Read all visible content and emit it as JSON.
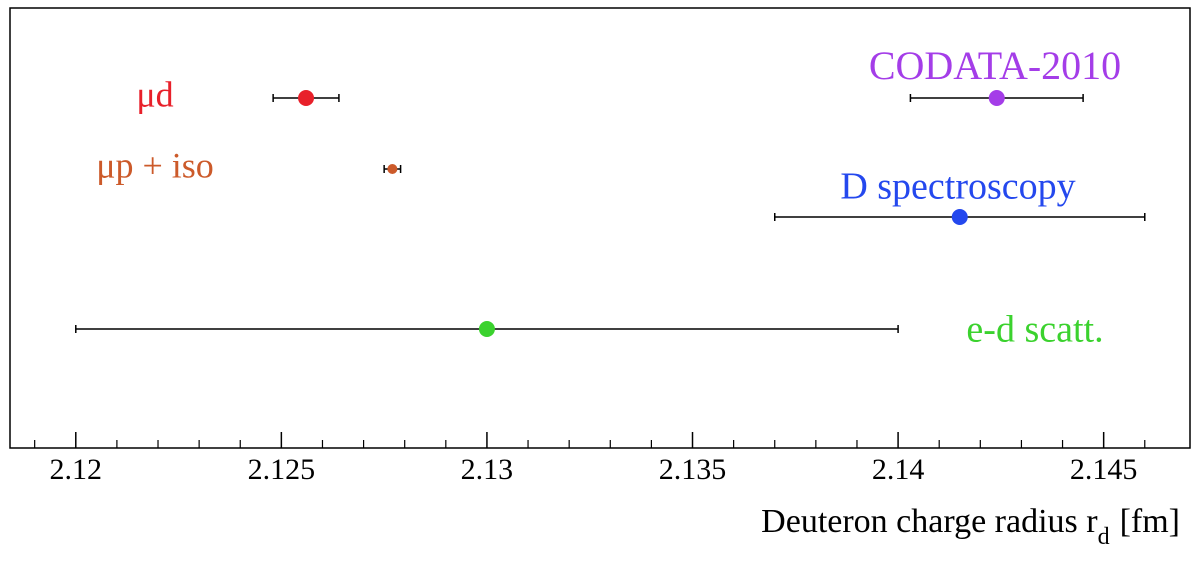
{
  "chart_data": {
    "type": "scatter",
    "xlabel": "Deuteron charge radius r",
    "xlabel_subscript": "d",
    "xlabel_unit": "[fm]",
    "xlim": [
      2.1184,
      2.1471
    ],
    "xticks": [
      2.12,
      2.125,
      2.13,
      2.135,
      2.14,
      2.145
    ],
    "xminorticks": [
      2.119,
      2.121,
      2.122,
      2.123,
      2.124,
      2.126,
      2.127,
      2.128,
      2.129,
      2.131,
      2.132,
      2.133,
      2.134,
      2.136,
      2.137,
      2.138,
      2.139,
      2.141,
      2.142,
      2.143,
      2.144,
      2.146
    ],
    "series": [
      {
        "name": "μd",
        "color": "#e8202a",
        "x": 2.1256,
        "xerr": 0.0008
      },
      {
        "name": "μp + iso",
        "color": "#cc5a2a",
        "x": 2.1277,
        "xerr": 0.0002
      },
      {
        "name": "CODATA-2010",
        "color": "#a43de8",
        "x": 2.1424,
        "xerr": 0.0021
      },
      {
        "name": "D spectroscopy",
        "color": "#2448ee",
        "x": 2.1415,
        "xerr": 0.0045
      },
      {
        "name": "e-d scatt.",
        "color": "#3bd22e",
        "x": 2.13,
        "xerr": 0.01
      }
    ]
  }
}
